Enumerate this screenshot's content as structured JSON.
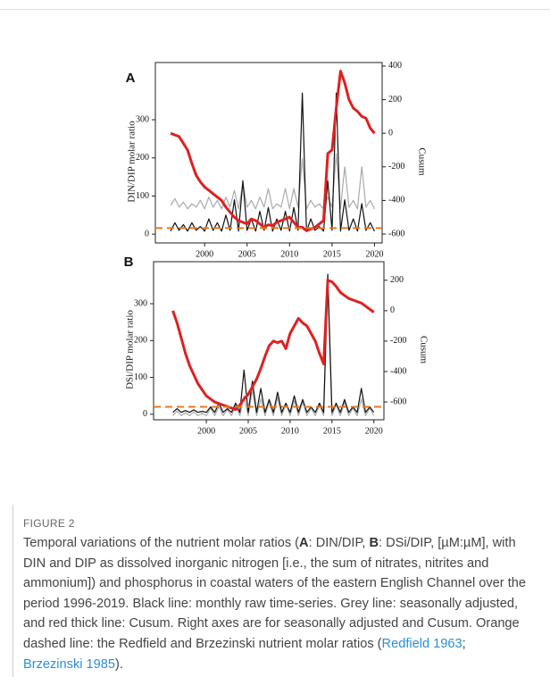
{
  "chart_data": [
    {
      "type": "line",
      "panel": "A",
      "y_label": "DIN/DIP molar ratio",
      "y2_label": "Cusum",
      "x": [
        1996,
        1996.5,
        1997,
        1997.5,
        1998,
        1998.5,
        1999,
        1999.5,
        2000,
        2000.5,
        2001,
        2001.5,
        2002,
        2002.5,
        2003,
        2003.5,
        2004,
        2004.5,
        2005,
        2005.5,
        2006,
        2006.5,
        2007,
        2007.5,
        2008,
        2008.5,
        2009,
        2009.5,
        2010,
        2010.5,
        2011,
        2011.5,
        2012,
        2012.5,
        2013,
        2013.5,
        2014,
        2014.5,
        2015,
        2015.5,
        2016,
        2016.5,
        2017,
        2017.5,
        2018,
        2018.5,
        2019,
        2019.5,
        2020
      ],
      "xlim": [
        1994.2,
        2020.9
      ],
      "xticks": [
        2000,
        2005,
        2010,
        2015,
        2020
      ],
      "ylim": [
        -23,
        450
      ],
      "yticks": [
        0,
        100,
        200,
        300
      ],
      "y2lim": [
        -653,
        421
      ],
      "y2ticks": [
        -600,
        -400,
        -200,
        0,
        200,
        400
      ],
      "series": [
        {
          "color": "#aaaaaa",
          "axis": "y2",
          "style": "thin",
          "values": [
            -430,
            -390,
            -440,
            -410,
            -450,
            -420,
            -440,
            -400,
            -450,
            -380,
            -440,
            -400,
            -450,
            -380,
            -440,
            -340,
            -450,
            -300,
            -440,
            -400,
            -450,
            -380,
            -440,
            -330,
            -450,
            -420,
            -440,
            -330,
            -450,
            -330,
            -440,
            -150,
            -450,
            -400,
            -440,
            -420,
            -450,
            -380,
            -440,
            -120,
            -450,
            -200,
            -440,
            -400,
            -450,
            -200,
            -440,
            -400,
            -450
          ]
        },
        {
          "color": "#111111",
          "axis": "y",
          "style": "thin",
          "values": [
            8,
            30,
            10,
            25,
            8,
            30,
            10,
            20,
            8,
            40,
            10,
            30,
            8,
            50,
            10,
            90,
            8,
            140,
            10,
            40,
            8,
            60,
            10,
            70,
            8,
            40,
            10,
            60,
            8,
            70,
            10,
            370,
            8,
            40,
            10,
            20,
            8,
            140,
            10,
            370,
            8,
            90,
            10,
            40,
            8,
            80,
            10,
            30,
            8
          ]
        },
        {
          "color": "#e02020",
          "axis": "y2",
          "style": "thick",
          "values": [
            0,
            -10,
            -20,
            -60,
            -100,
            -180,
            -250,
            -290,
            -320,
            -340,
            -360,
            -380,
            -400,
            -440,
            -470,
            -500,
            -520,
            -530,
            -540,
            -510,
            -520,
            -540,
            -560,
            -545,
            -550,
            -530,
            -520,
            -510,
            -500,
            -530,
            -560,
            -560,
            -580,
            -570,
            -560,
            -540,
            -520,
            -120,
            -100,
            150,
            370,
            300,
            200,
            150,
            130,
            100,
            90,
            30,
            0
          ]
        }
      ],
      "reference_line": {
        "value": 16,
        "color": "#e8781e",
        "dashed": true
      }
    },
    {
      "type": "line",
      "panel": "B",
      "y_label": "DSi/DIP molar ratio",
      "y2_label": "Cusum",
      "x": [
        1996,
        1996.5,
        1997,
        1997.5,
        1998,
        1998.5,
        1999,
        1999.5,
        2000,
        2000.5,
        2001,
        2001.5,
        2002,
        2002.5,
        2003,
        2003.5,
        2004,
        2004.5,
        2005,
        2005.5,
        2006,
        2006.5,
        2007,
        2007.5,
        2008,
        2008.5,
        2009,
        2009.5,
        2010,
        2010.5,
        2011,
        2011.5,
        2012,
        2012.5,
        2013,
        2013.5,
        2014,
        2014.5,
        2015,
        2015.5,
        2016,
        2016.5,
        2017,
        2017.5,
        2018,
        2018.5,
        2019,
        2019.5,
        2020
      ],
      "xlim": [
        1993.7,
        2021.2
      ],
      "xticks": [
        2000,
        2005,
        2010,
        2015,
        2020
      ],
      "ylim": [
        -15,
        414
      ],
      "yticks": [
        0,
        100,
        200,
        300
      ],
      "y2lim": [
        -717,
        322
      ],
      "y2ticks": [
        -600,
        -400,
        -200,
        0,
        200
      ],
      "series": [
        {
          "color": "#aaaaaa",
          "axis": "y2",
          "style": "thin",
          "values": [
            -690,
            -660,
            -690,
            -670,
            -690,
            -665,
            -690,
            -675,
            -690,
            -640,
            -690,
            -630,
            -690,
            -650,
            -690,
            -620,
            -690,
            -560,
            -690,
            -520,
            -690,
            -580,
            -690,
            -600,
            -690,
            -570,
            -690,
            -610,
            -690,
            -590,
            -690,
            -600,
            -690,
            -640,
            -690,
            -620,
            -690,
            150,
            -690,
            -620,
            -690,
            -600,
            -690,
            -640,
            -690,
            -580,
            -690,
            -640,
            -690
          ]
        },
        {
          "color": "#111111",
          "axis": "y",
          "style": "thin",
          "values": [
            5,
            15,
            5,
            10,
            5,
            12,
            5,
            8,
            5,
            20,
            5,
            30,
            5,
            15,
            5,
            30,
            5,
            120,
            5,
            90,
            5,
            70,
            5,
            40,
            5,
            60,
            5,
            30,
            5,
            50,
            5,
            40,
            5,
            20,
            5,
            30,
            5,
            380,
            5,
            30,
            5,
            40,
            5,
            20,
            5,
            70,
            5,
            20,
            5
          ]
        },
        {
          "color": "#e02020",
          "axis": "y2",
          "style": "thick",
          "values": [
            0,
            -80,
            -180,
            -280,
            -360,
            -420,
            -480,
            -520,
            -560,
            -580,
            -600,
            -610,
            -620,
            -630,
            -640,
            -650,
            -620,
            -580,
            -550,
            -500,
            -450,
            -380,
            -300,
            -230,
            -200,
            -210,
            -200,
            -250,
            -150,
            -100,
            -50,
            -80,
            -100,
            -150,
            -200,
            -280,
            -350,
            200,
            190,
            160,
            120,
            100,
            80,
            70,
            60,
            50,
            30,
            10,
            -10
          ]
        }
      ],
      "reference_line": {
        "value": 20,
        "color": "#e8781e",
        "dashed": true
      }
    }
  ],
  "figure": {
    "label": "FIGURE 2",
    "caption": [
      {
        "text": "Temporal variations of the nutrient molar ratios (",
        "style": "plain"
      },
      {
        "text": "A",
        "style": "bold"
      },
      {
        "text": ": DIN/DIP, ",
        "style": "plain"
      },
      {
        "text": "B",
        "style": "bold"
      },
      {
        "text": ": DSi/DIP, [µM:µM], with DIN and DIP as dissolved inorganic nitrogen [i.e., the sum of nitrates, nitrites and ammonium]) and phosphorus in coastal waters of the eastern English Channel over the period 1996-2019. Black line: monthly raw time-series. Grey line: seasonally adjusted, and red thick line: Cusum. Right axes are for seasonally adjusted and Cusum. Orange dashed line: the Redfield and Brzezinski nutrient molar ratios (",
        "style": "plain"
      },
      {
        "text": "Redfield 1963",
        "style": "link"
      },
      {
        "text": "; ",
        "style": "plain"
      },
      {
        "text": "Brzezinski 1985",
        "style": "link"
      },
      {
        "text": ").",
        "style": "plain"
      }
    ]
  }
}
